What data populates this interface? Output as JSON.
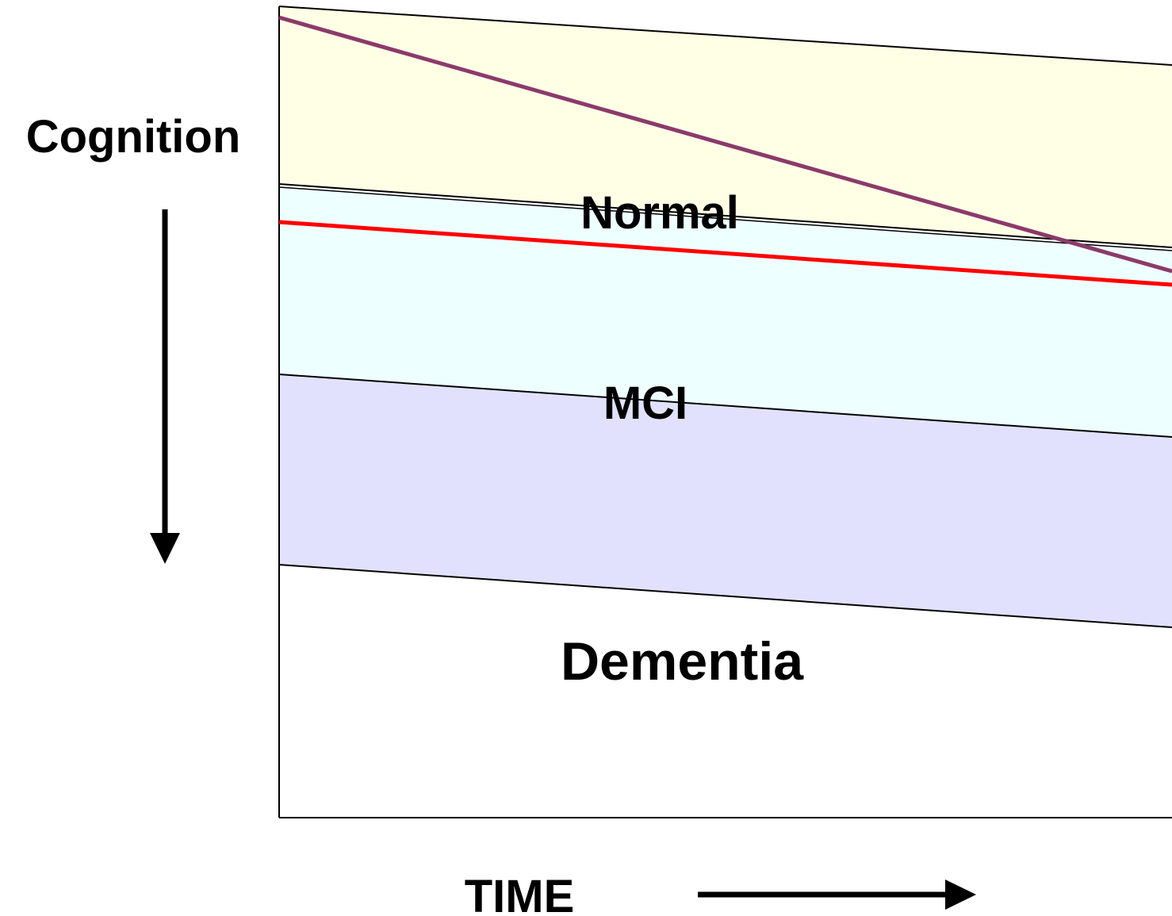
{
  "labels": {
    "y_axis": "Cognition",
    "x_axis": "TIME",
    "region_normal": "Normal",
    "region_mci": "MCI",
    "region_dementia": "Dementia"
  },
  "colors": {
    "normal_band": "#FFFFE6",
    "mci_band": "#EEFFFF",
    "dementia_band": "#E1E1FD",
    "steep_decline_line": "#8B3A6A",
    "gradual_decline_line": "#FF0000",
    "boundary_line": "#000000"
  }
}
